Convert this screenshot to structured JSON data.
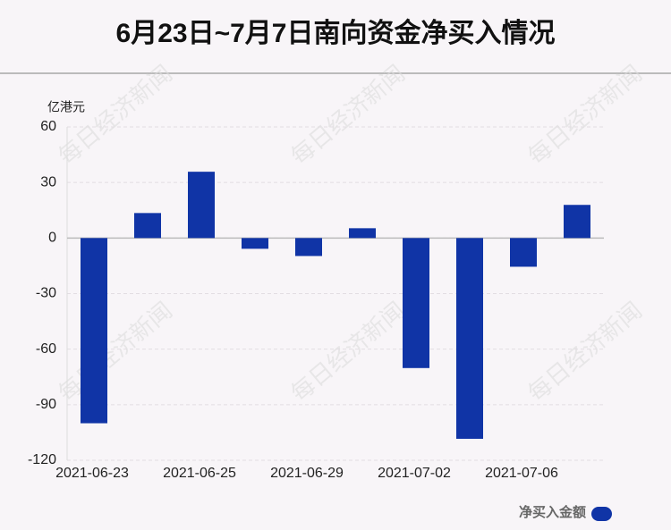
{
  "chart_data": {
    "type": "bar",
    "title": "6月23日~7月7日南向资金净买入情况",
    "y_axis_label": "亿港元",
    "watermark": "每日经济新闻",
    "categories": [
      "2021-06-23",
      null,
      "2021-06-25",
      null,
      "2021-06-29",
      null,
      "2021-07-02",
      null,
      "2021-07-06",
      null
    ],
    "series": [
      {
        "name": "净买入金额",
        "color": "#1034a6",
        "values": [
          -100,
          13.5,
          35.8,
          -5.8,
          -9.7,
          5.3,
          -70.2,
          -108.4,
          -15.5,
          17.9
        ]
      }
    ],
    "ylim": [
      -120,
      60
    ],
    "yticks": [
      -120,
      -90,
      -60,
      -30,
      0,
      30,
      60
    ],
    "grid": true,
    "legend": "bottom-right"
  }
}
